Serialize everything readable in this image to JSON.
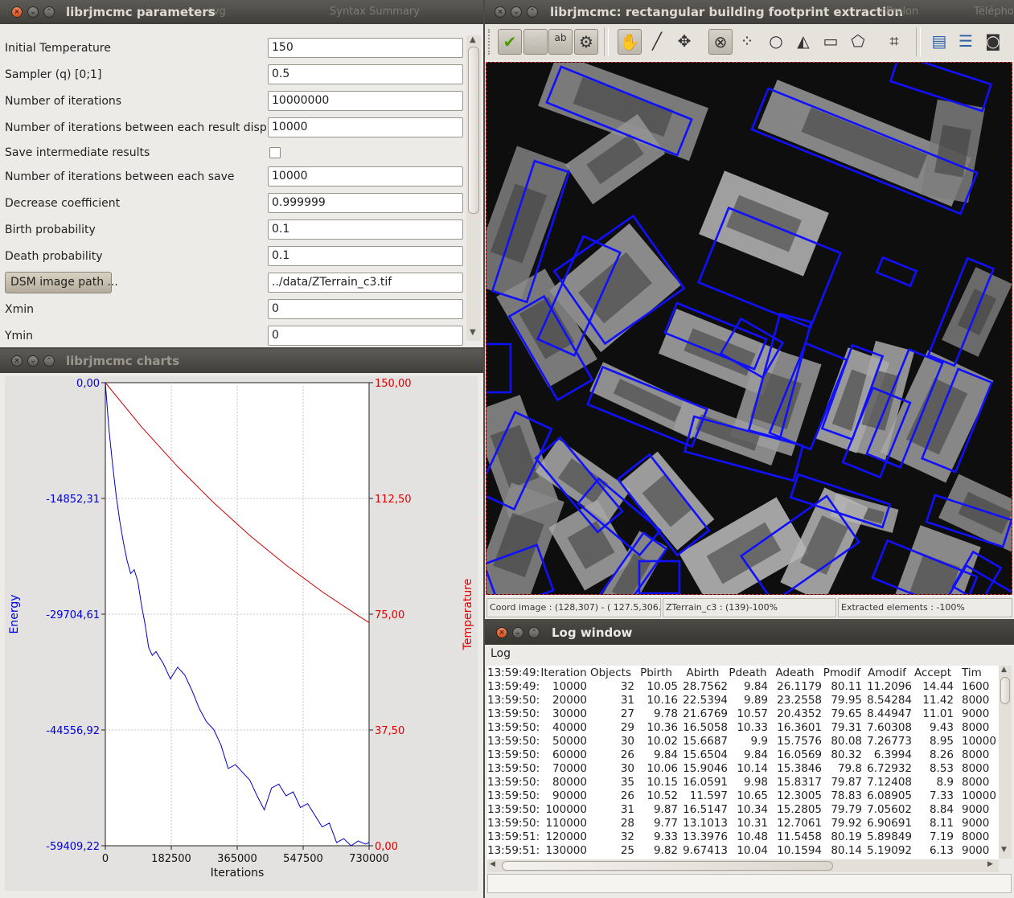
{
  "params_window": {
    "title": "librjmcmc parameters",
    "ghost_tabs": [
      "svg",
      "Syntax Summary"
    ],
    "rows": [
      {
        "label": "Initial Temperature",
        "value": "150"
      },
      {
        "label": "Sampler (q) [0;1]",
        "value": "0.5"
      },
      {
        "label": "Number of iterations",
        "value": "10000000"
      },
      {
        "label": "Number of iterations between each result display",
        "value": "10000"
      },
      {
        "label": "Save intermediate results",
        "value": ""
      },
      {
        "label": "Number of iterations between each save",
        "value": "10000"
      },
      {
        "label": "Decrease coefficient",
        "value": "0.999999"
      },
      {
        "label": "Birth probability",
        "value": "0.1"
      },
      {
        "label": "Death probability",
        "value": "0.1"
      },
      {
        "label": "DSM image path ...",
        "value": "../data/ZTerrain_c3.tif"
      },
      {
        "label": "Xmin",
        "value": "0"
      },
      {
        "label": "Ymin",
        "value": "0"
      }
    ]
  },
  "charts_window": {
    "title": "librjmcmc charts"
  },
  "chart_data": {
    "type": "line",
    "xlabel": "Iterations",
    "ylabel": "Energy",
    "ylabel_right": "Temperature",
    "x_ticks": [
      "0",
      "182500",
      "365000",
      "547500",
      "730000"
    ],
    "y_ticks_left": [
      "0,00",
      "-14852,31",
      "-29704,61",
      "-44556,92",
      "-59409,22"
    ],
    "y_ticks_right": [
      "150,00",
      "112,50",
      "75,00",
      "37,50",
      "0,00"
    ],
    "xlim": [
      0,
      730000
    ],
    "ylim_left": [
      -59409.22,
      0
    ],
    "ylim_right": [
      0,
      150
    ],
    "grid": true,
    "series": [
      {
        "name": "Energy",
        "axis": "left",
        "color": "#0000cc",
        "x": [
          0,
          10000,
          20000,
          30000,
          40000,
          50000,
          60000,
          70000,
          80000,
          90000,
          100000,
          110000,
          120000,
          130000,
          140000,
          160000,
          180000,
          200000,
          220000,
          240000,
          260000,
          280000,
          300000,
          320000,
          340000,
          360000,
          380000,
          400000,
          420000,
          440000,
          460000,
          480000,
          500000,
          520000,
          540000,
          560000,
          580000,
          600000,
          620000,
          640000,
          660000,
          680000,
          700000,
          720000,
          730000
        ],
        "y": [
          0,
          -6000,
          -10500,
          -14500,
          -17800,
          -20500,
          -22800,
          -24500,
          -24000,
          -25500,
          -28500,
          -31000,
          -34000,
          -35000,
          -34500,
          -36000,
          -38000,
          -36500,
          -37500,
          -39500,
          -41800,
          -43500,
          -44500,
          -46500,
          -49500,
          -49000,
          -50000,
          -51000,
          -53000,
          -54800,
          -52000,
          -51500,
          -53000,
          -52500,
          -54500,
          -54000,
          -55500,
          -57000,
          -56500,
          -59000,
          -58500,
          -59409,
          -58800,
          -59200,
          -59000
        ]
      },
      {
        "name": "Temperature",
        "axis": "right",
        "color": "#cc0000",
        "x": [
          0,
          100000,
          200000,
          300000,
          400000,
          500000,
          600000,
          700000,
          730000
        ],
        "y": [
          150,
          135.7,
          122.8,
          111.1,
          100.5,
          90.9,
          82.3,
          74.5,
          72.3
        ]
      }
    ]
  },
  "main_window": {
    "title": "librjmcmc: rectangular building footprint extraction",
    "ghost_tail": "- Prolon",
    "ghost_right": "Téléphone",
    "toolbar": [
      "accept-icon",
      "cancel-icon",
      "text-icon",
      "settings-icon",
      "hand-icon",
      "pen-icon",
      "move-icon",
      "zoom-reset-icon",
      "dots-icon",
      "circle-icon",
      "mirror-icon",
      "rectangle-icon",
      "polygon-icon",
      "crop-icon",
      "folder-icon",
      "list-icon",
      "camera-icon"
    ],
    "status": {
      "coords": "Coord image : (128,307) - ( 127.5,306.5",
      "layer": "ZTerrain_c3 : (139)-100%",
      "extracted": "Extracted elements : -100%"
    }
  },
  "log_window": {
    "title": "Log window",
    "menu_label": "Log",
    "headers": [
      "13:59:49:",
      "Iteration",
      "Objects",
      "Pbirth",
      "Abirth",
      "Pdeath",
      "Adeath",
      "Pmodif",
      "Amodif",
      "Accept",
      "Tim"
    ],
    "rows": [
      [
        "13:59:49:",
        "10000",
        "32",
        "10.05",
        "28.7562",
        "9.84",
        "26.1179",
        "80.11",
        "11.2096",
        "14.44",
        "1600"
      ],
      [
        "13:59:50:",
        "20000",
        "31",
        "10.16",
        "22.5394",
        "9.89",
        "23.2558",
        "79.95",
        "8.54284",
        "11.42",
        "8000"
      ],
      [
        "13:59:50:",
        "30000",
        "27",
        "9.78",
        "21.6769",
        "10.57",
        "20.4352",
        "79.65",
        "8.44947",
        "11.01",
        "9000"
      ],
      [
        "13:59:50:",
        "40000",
        "29",
        "10.36",
        "16.5058",
        "10.33",
        "16.3601",
        "79.31",
        "7.60308",
        "9.43",
        "8000"
      ],
      [
        "13:59:50:",
        "50000",
        "30",
        "10.02",
        "15.6687",
        "9.9",
        "15.7576",
        "80.08",
        "7.26773",
        "8.95",
        "10000"
      ],
      [
        "13:59:50:",
        "60000",
        "26",
        "9.84",
        "15.6504",
        "9.84",
        "16.0569",
        "80.32",
        "6.3994",
        "8.26",
        "8000"
      ],
      [
        "13:59:50:",
        "70000",
        "30",
        "10.06",
        "15.9046",
        "10.14",
        "15.3846",
        "79.8",
        "6.72932",
        "8.53",
        "8000"
      ],
      [
        "13:59:50:",
        "80000",
        "35",
        "10.15",
        "16.0591",
        "9.98",
        "15.8317",
        "79.87",
        "7.12408",
        "8.9",
        "8000"
      ],
      [
        "13:59:50:",
        "90000",
        "26",
        "10.52",
        "11.597",
        "10.65",
        "12.3005",
        "78.83",
        "6.08905",
        "7.33",
        "10000"
      ],
      [
        "13:59:50:",
        "100000",
        "31",
        "9.87",
        "16.5147",
        "10.34",
        "15.2805",
        "79.79",
        "7.05602",
        "8.84",
        "9000"
      ],
      [
        "13:59:50:",
        "110000",
        "28",
        "9.77",
        "13.1013",
        "10.31",
        "12.7061",
        "79.92",
        "6.90691",
        "8.11",
        "9000"
      ],
      [
        "13:59:51:",
        "120000",
        "32",
        "9.33",
        "13.3976",
        "10.48",
        "11.5458",
        "80.19",
        "5.89849",
        "7.19",
        "8000"
      ],
      [
        "13:59:51:",
        "130000",
        "25",
        "9.82",
        "9.67413",
        "10.04",
        "10.1594",
        "80.14",
        "5.19092",
        "6.13",
        "9000"
      ]
    ]
  }
}
